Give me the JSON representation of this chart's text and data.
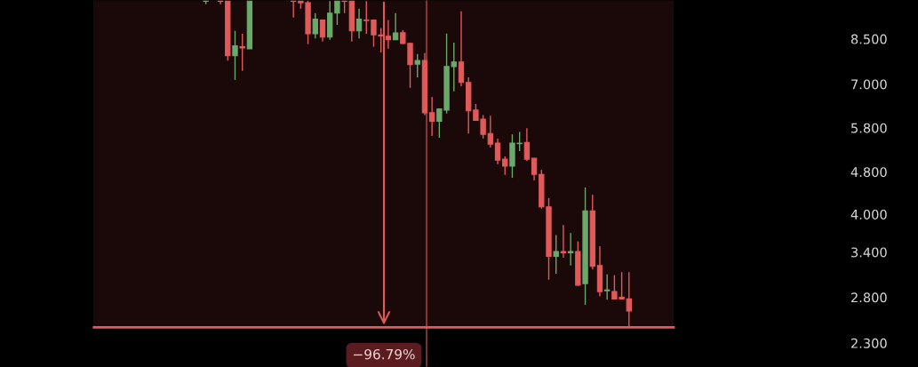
{
  "chart_data": {
    "type": "candlestick",
    "categories": [
      null,
      null,
      null,
      null,
      null,
      null,
      null,
      null,
      null,
      null,
      null,
      null,
      null,
      null,
      null,
      null,
      null,
      null,
      null,
      null,
      null,
      null,
      null,
      null,
      null,
      null,
      null,
      null,
      null,
      null,
      null,
      null,
      null,
      null,
      null,
      null,
      null,
      null,
      null,
      null,
      null,
      null,
      null,
      null,
      null,
      null,
      null,
      null,
      null,
      null,
      null,
      null,
      null,
      null,
      null,
      null,
      null,
      null,
      null,
      null,
      null,
      null,
      null,
      null,
      null,
      null,
      null,
      null,
      null,
      null,
      null,
      null,
      null,
      null,
      null,
      null,
      null,
      null,
      null,
      null,
      null,
      null,
      null,
      null,
      null,
      null,
      null,
      null,
      null,
      null,
      null,
      null,
      null,
      null,
      null,
      null,
      null,
      null,
      null,
      null,
      null,
      null,
      null
    ],
    "ohlc": [
      null,
      null,
      null,
      null,
      null,
      null,
      null,
      null,
      null,
      null,
      null,
      null,
      null,
      null,
      null,
      [
        9.99,
        10.0,
        9.87,
        10.0
      ],
      null,
      [
        10.0,
        10.0,
        9.87,
        9.99
      ],
      [
        10.0,
        10.0,
        7.74,
        7.91
      ],
      [
        7.91,
        8.8,
        7.13,
        8.25
      ],
      [
        8.22,
        8.69,
        7.41,
        8.18
      ],
      [
        8.15,
        10.0,
        8.15,
        10.0
      ],
      null,
      null,
      null,
      null,
      null,
      [
        10.0,
        10.0,
        9.32,
        9.99
      ],
      [
        10.0,
        10.0,
        9.68,
        9.93
      ],
      [
        9.93,
        10.02,
        8.31,
        8.69
      ],
      [
        8.69,
        9.5,
        8.52,
        9.26
      ],
      [
        9.22,
        9.22,
        8.41,
        8.57
      ],
      [
        8.57,
        10.0,
        8.47,
        9.5
      ],
      [
        9.5,
        10.0,
        9.03,
        10.0
      ],
      [
        10.0,
        10.0,
        9.5,
        9.99
      ],
      [
        10.0,
        10.0,
        8.41,
        8.8
      ],
      [
        8.8,
        9.68,
        8.52,
        9.26
      ],
      [
        9.22,
        10.0,
        8.69,
        9.2
      ],
      [
        9.22,
        9.22,
        8.22,
        8.65
      ],
      [
        8.65,
        8.91,
        8.02,
        8.61
      ],
      [
        8.6,
        9.22,
        8.15,
        8.47
      ],
      [
        8.47,
        9.5,
        8.47,
        8.72
      ],
      [
        8.73,
        8.83,
        8.31,
        8.34
      ],
      [
        8.34,
        8.37,
        6.89,
        7.61
      ],
      [
        7.63,
        7.97,
        7.21,
        7.75
      ],
      [
        7.75,
        8.0,
        6.13,
        6.19
      ],
      [
        6.19,
        6.63,
        5.6,
        5.97
      ],
      [
        5.97,
        6.31,
        5.56,
        6.29
      ],
      [
        6.26,
        8.7,
        6.17,
        7.55
      ],
      [
        7.55,
        8.37,
        6.79,
        7.7
      ],
      [
        7.7,
        9.57,
        6.94,
        7.05
      ],
      [
        7.05,
        7.21,
        5.66,
        6.24
      ],
      [
        6.26,
        6.43,
        5.99,
        5.99
      ],
      [
        6.02,
        6.13,
        5.54,
        5.64
      ],
      [
        5.66,
        6.11,
        5.33,
        5.41
      ],
      [
        5.43,
        5.54,
        4.96,
        5.05
      ],
      [
        5.07,
        5.13,
        4.74,
        4.92
      ],
      [
        4.92,
        5.64,
        4.68,
        5.43
      ],
      [
        5.42,
        5.7,
        5.25,
        5.43
      ],
      [
        5.45,
        5.79,
        5.03,
        5.07
      ],
      [
        5.09,
        5.09,
        4.63,
        4.75
      ],
      [
        4.75,
        4.84,
        4.1,
        4.13
      ],
      [
        4.13,
        4.29,
        3.02,
        3.34
      ],
      [
        3.34,
        3.66,
        3.1,
        3.41
      ],
      [
        3.41,
        3.82,
        3.32,
        3.39
      ],
      [
        3.39,
        3.69,
        3.21,
        3.41
      ],
      [
        3.41,
        3.56,
        2.94,
        2.95
      ],
      [
        2.97,
        4.49,
        2.71,
        4.06
      ],
      [
        4.06,
        4.35,
        3.16,
        3.2
      ],
      [
        3.21,
        3.49,
        2.81,
        2.87
      ],
      [
        2.88,
        3.09,
        2.77,
        2.89
      ],
      [
        2.87,
        3.08,
        2.78,
        2.78
      ],
      [
        2.8,
        3.12,
        2.77,
        2.78
      ],
      [
        2.78,
        3.12,
        2.46,
        2.64
      ],
      null,
      null,
      null,
      null,
      null,
      null,
      null,
      null,
      null,
      null,
      null,
      null,
      null,
      null,
      null,
      null,
      null,
      null,
      null,
      null,
      null,
      null,
      null,
      null,
      null,
      null,
      null,
      null,
      null
    ],
    "colors": [
      null,
      null,
      null,
      null,
      null,
      null,
      null,
      null,
      null,
      null,
      null,
      null,
      null,
      null,
      null,
      "#6aa96a",
      null,
      "#e05a5a",
      "#e05a5a",
      "#6aa96a",
      "#e05a5a",
      "#6aa96a",
      null,
      null,
      null,
      null,
      null,
      "#e05a5a",
      "#e05a5a",
      "#e05a5a",
      "#6aa96a",
      "#e05a5a",
      "#6aa96a",
      "#6aa96a",
      "#e05a5a",
      "#e05a5a",
      "#6aa96a",
      "#e05a5a",
      "#e05a5a",
      "#e05a5a",
      "#e05a5a",
      "#6aa96a",
      "#e05a5a",
      "#e05a5a",
      "#6aa96a",
      "#e05a5a",
      "#e05a5a",
      "#6aa96a",
      "#6aa96a",
      "#6aa96a",
      "#e05a5a",
      "#e05a5a",
      "#e05a5a",
      "#e05a5a",
      "#e05a5a",
      "#e05a5a",
      "#e05a5a",
      "#6aa96a",
      "#6aa96a",
      "#e05a5a",
      "#e05a5a",
      "#e05a5a",
      "#e05a5a",
      "#6aa96a",
      "#e05a5a",
      "#6aa96a",
      "#e05a5a",
      "#6aa96a",
      "#e05a5a",
      "#e05a5a",
      "#6aa96a",
      "#e05a5a",
      "#e05a5a",
      "#e05a5a",
      null,
      null,
      null,
      null,
      null,
      null,
      null,
      null,
      null,
      null,
      null,
      null,
      null,
      null,
      null,
      null,
      null,
      null,
      null,
      null,
      null,
      null,
      null,
      null,
      null,
      null,
      null,
      null,
      null
    ],
    "log": true,
    "ylim": [
      2.075,
      10.05
    ],
    "yticks": [
      {
        "value": 2.3,
        "label": "2.300"
      },
      {
        "value": 2.8,
        "label": "2.800"
      },
      {
        "value": 3.4,
        "label": "3.400"
      },
      {
        "value": 4.0,
        "label": "4.000"
      },
      {
        "value": 4.8,
        "label": "4.800"
      },
      {
        "value": 5.8,
        "label": "5.800"
      },
      {
        "value": 7.0,
        "label": "7.000"
      },
      {
        "value": 8.5,
        "label": "8.500"
      }
    ],
    "tick_labels": "y",
    "grid": false,
    "bands": [
      {
        "axis": "y",
        "from": 2.46,
        "to": 10.05,
        "color": "#1b0809"
      }
    ],
    "ref_lines": [
      {
        "axis": "y",
        "value": 2.46,
        "color": "#e05a5a"
      }
    ],
    "annotations": [
      "−96.79%"
    ]
  }
}
